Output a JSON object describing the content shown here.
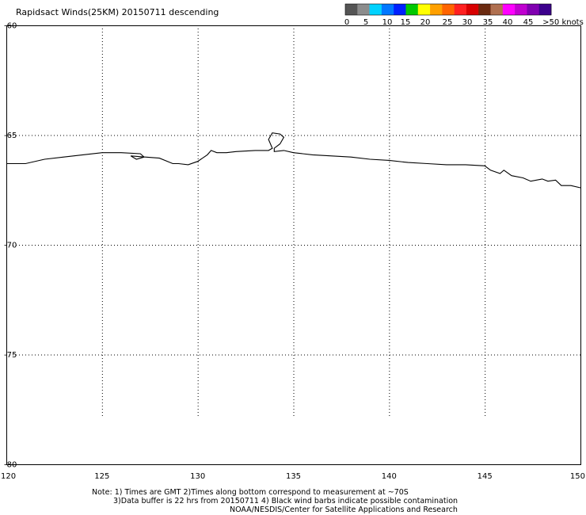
{
  "title": "Rapidsact Winds(25KM) 20150711 descending",
  "legend": {
    "colors": [
      "#555555",
      "#8c8c8c",
      "#00d2ff",
      "#0077ff",
      "#0020ff",
      "#00c800",
      "#ffff00",
      "#ffa000",
      "#ff6400",
      "#ff2020",
      "#d80000",
      "#6a2a10",
      "#b07050",
      "#ff00ff",
      "#c000d0",
      "#8000b0",
      "#3c008c"
    ],
    "labels": [
      "0",
      "5",
      "10",
      "15",
      "20",
      "25",
      "30",
      "35",
      "40",
      "45",
      ">50 knots"
    ]
  },
  "map": {
    "lon_range": [
      120,
      150
    ],
    "lat_range": [
      -80,
      -60
    ],
    "lon_ticks": [
      "120",
      "125",
      "130",
      "135",
      "140",
      "145",
      "150"
    ],
    "lat_ticks": [
      "-60",
      "-65",
      "-70",
      "-75",
      "-80"
    ],
    "coastline": [
      [
        120,
        -66.3
      ],
      [
        121,
        -66.3
      ],
      [
        122,
        -66.1
      ],
      [
        123,
        -66.0
      ],
      [
        124,
        -65.9
      ],
      [
        125,
        -65.8
      ],
      [
        126,
        -65.8
      ],
      [
        127,
        -65.85
      ],
      [
        127.2,
        -66.0
      ],
      [
        126.8,
        -66.1
      ],
      [
        126.5,
        -65.95
      ],
      [
        128,
        -66.05
      ],
      [
        128.7,
        -66.3
      ],
      [
        129,
        -66.3
      ],
      [
        129.5,
        -66.35
      ],
      [
        130,
        -66.2
      ],
      [
        130.5,
        -65.9
      ],
      [
        130.7,
        -65.7
      ],
      [
        131,
        -65.8
      ],
      [
        131.5,
        -65.8
      ],
      [
        132,
        -65.75
      ],
      [
        133,
        -65.7
      ],
      [
        133.7,
        -65.7
      ],
      [
        133.9,
        -65.6
      ],
      [
        133.7,
        -65.2
      ],
      [
        133.9,
        -64.9
      ],
      [
        134.3,
        -64.95
      ],
      [
        134.5,
        -65.1
      ],
      [
        134.3,
        -65.4
      ],
      [
        134.0,
        -65.6
      ],
      [
        134.0,
        -65.75
      ],
      [
        134.5,
        -65.7
      ],
      [
        135,
        -65.8
      ],
      [
        136,
        -65.9
      ],
      [
        137,
        -65.95
      ],
      [
        138,
        -66.0
      ],
      [
        139,
        -66.1
      ],
      [
        140,
        -66.15
      ],
      [
        141,
        -66.25
      ],
      [
        142,
        -66.3
      ],
      [
        143,
        -66.35
      ],
      [
        144,
        -66.35
      ],
      [
        145,
        -66.4
      ],
      [
        145.3,
        -66.6
      ],
      [
        145.8,
        -66.75
      ],
      [
        146,
        -66.6
      ],
      [
        146.4,
        -66.85
      ],
      [
        147,
        -66.95
      ],
      [
        147.4,
        -67.1
      ],
      [
        148,
        -67.0
      ],
      [
        148.3,
        -67.1
      ],
      [
        148.7,
        -67.05
      ],
      [
        149,
        -67.3
      ],
      [
        149.5,
        -67.3
      ],
      [
        150,
        -67.4
      ]
    ]
  },
  "notes": [
    "Note: 1) Times are GMT 2)Times along bottom correspond to measurement at ~70S",
    "3)Data buffer is 22 hrs from 20150711 4) Black wind barbs indicate possible contamination",
    "NOAA/NESDIS/Center for Satellite Applications and Research"
  ]
}
